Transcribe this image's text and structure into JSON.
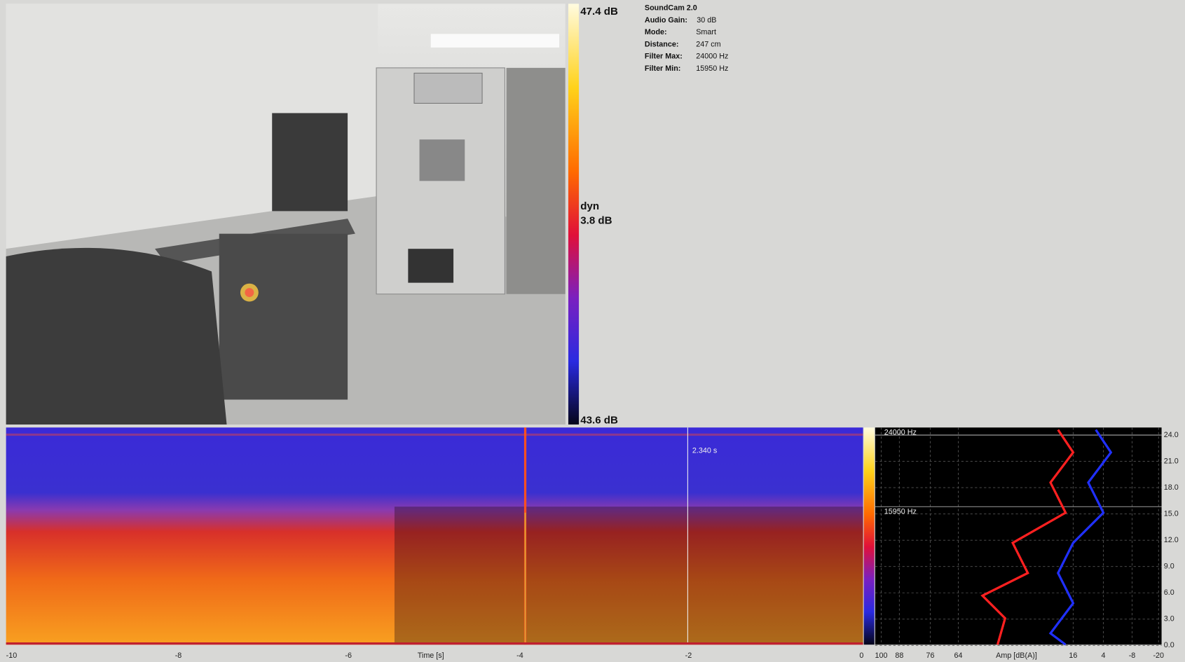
{
  "colorbar": {
    "max": "47.4 dB",
    "dyn_label": "dyn",
    "dyn": "3.8 dB",
    "min": "43.6 dB"
  },
  "info": {
    "title": "SoundCam 2.0",
    "rows": [
      [
        "Audio Gain:",
        "30 dB"
      ],
      [
        "Mode:",
        "Smart"
      ],
      [
        "Distance:",
        "247 cm"
      ],
      [
        "Filter Max:",
        "24000 Hz"
      ],
      [
        "Filter Min:",
        "15950 Hz"
      ]
    ]
  },
  "spectrogram": {
    "cursor": "2.340 s",
    "x_label": "Time [s]",
    "x_ticks": [
      "-10",
      "-8",
      "-6",
      "-4",
      "-2",
      "0"
    ]
  },
  "spectrum": {
    "freq_max": "24000 Hz",
    "freq_min": "15950 Hz",
    "x_label": "Amp [dB(A)]",
    "x_ticks": [
      "100",
      "88",
      "76",
      "64",
      "16",
      "4",
      "-8",
      "-20"
    ],
    "y_ticks": [
      "24.0",
      "21.0",
      "18.0",
      "15.0",
      "12.0",
      "9.0",
      "6.0",
      "3.0",
      "0.0"
    ]
  }
}
